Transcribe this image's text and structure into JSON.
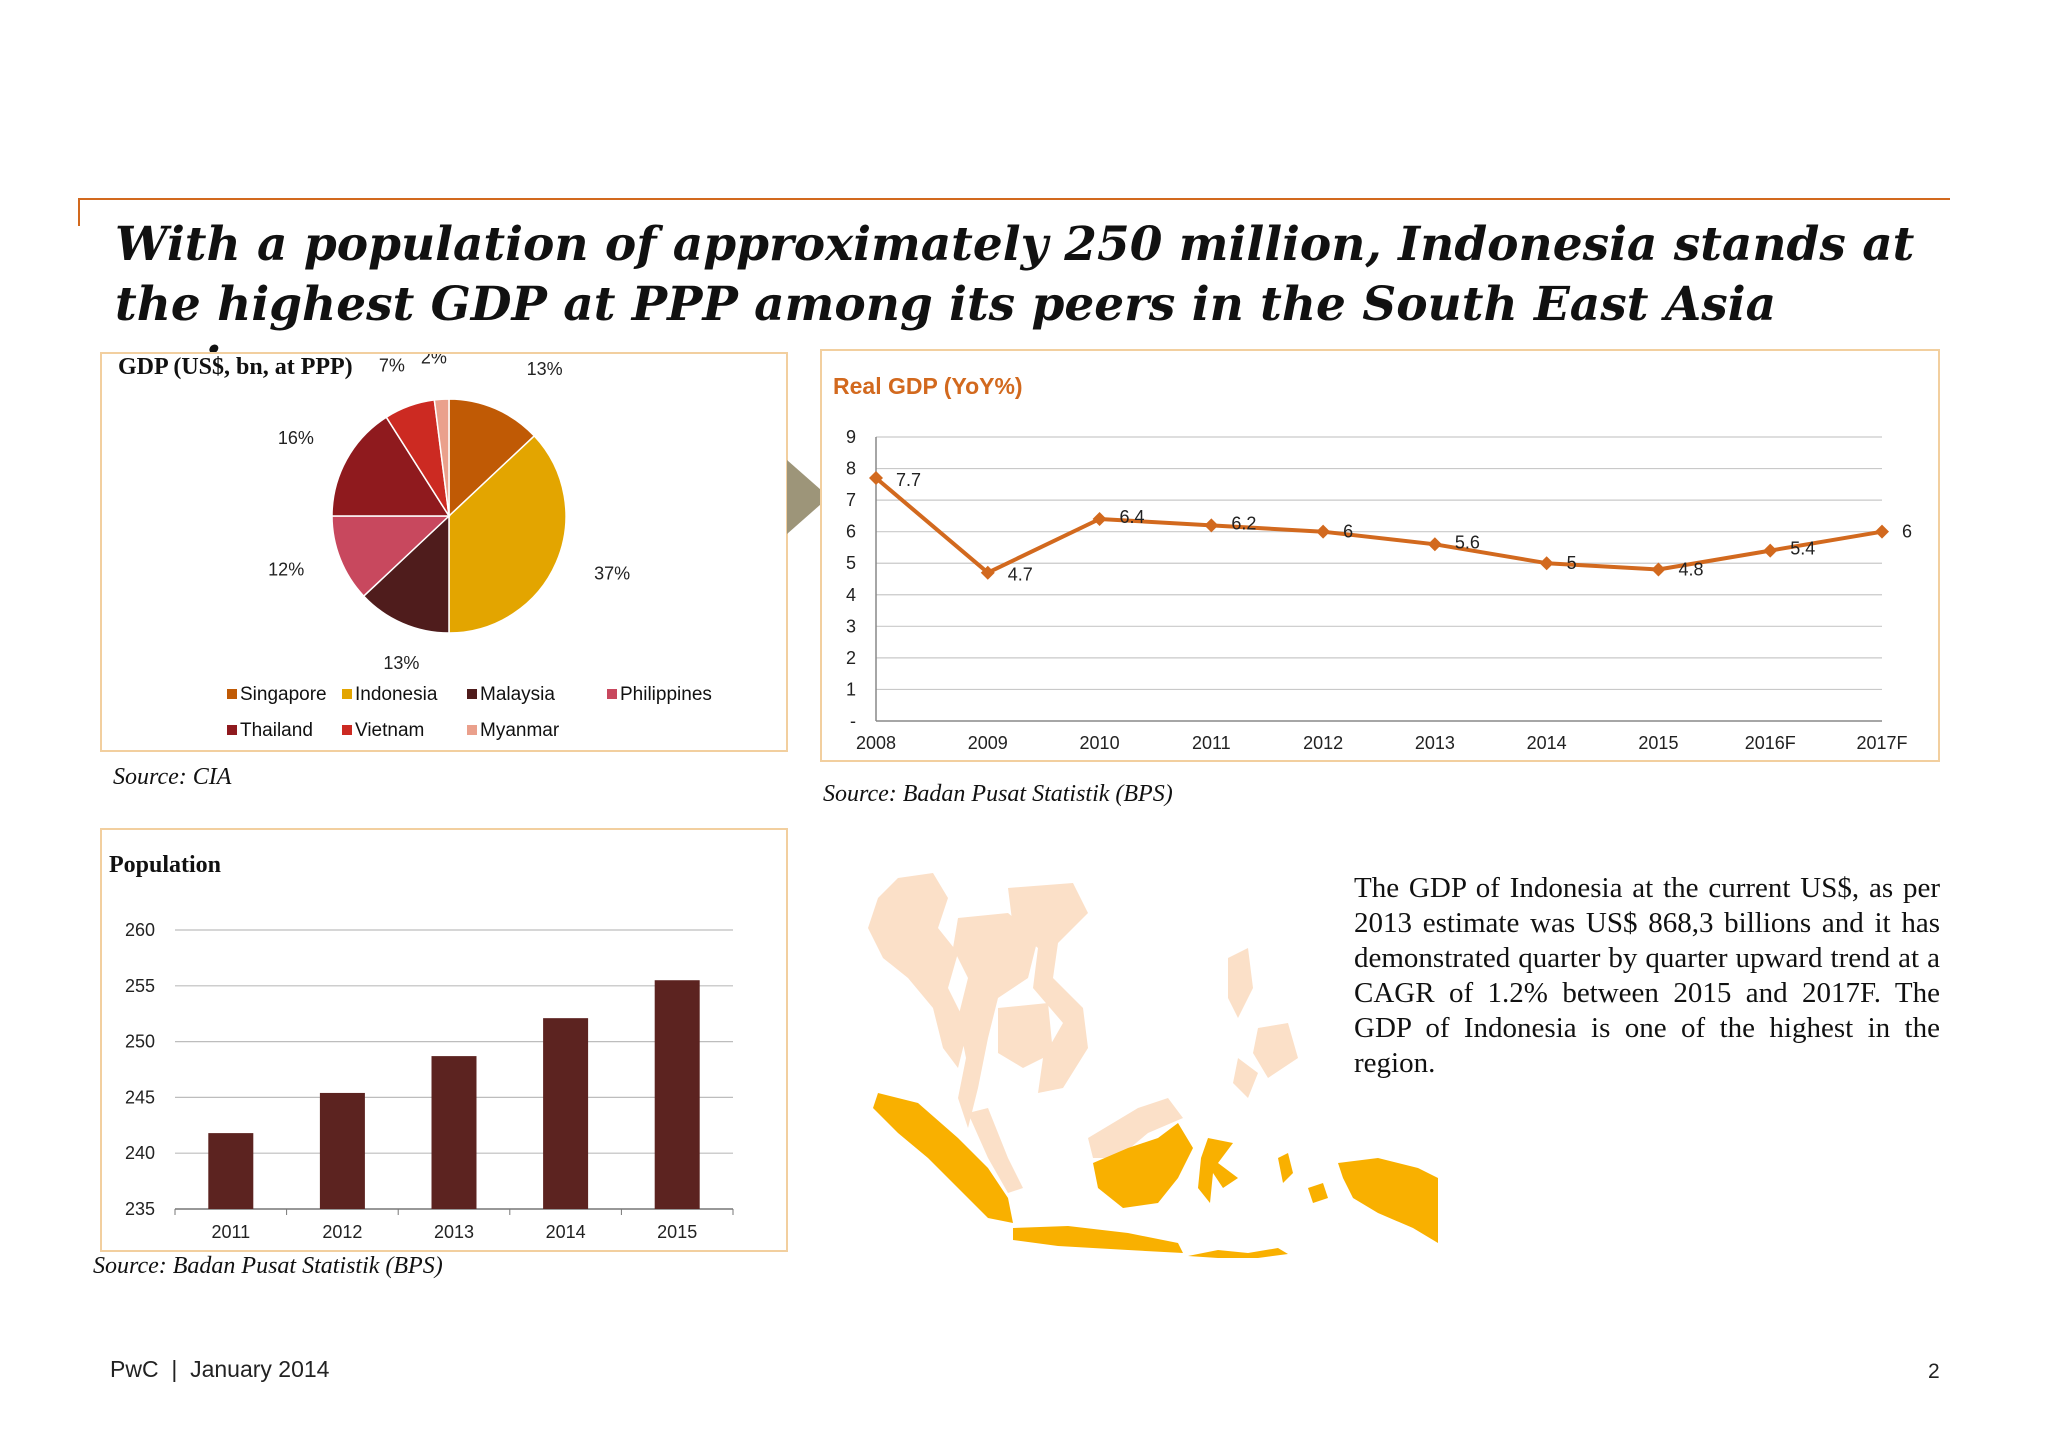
{
  "headline": "With a population of approximately 250 million, Indonesia stands at the highest GDP at PPP among its peers in the South East Asia region",
  "pie_panel": {
    "title": "GDP (US$, bn, at PPP)",
    "source": "Source: CIA"
  },
  "line_panel": {
    "title": "Real GDP (YoY%)",
    "source": "Source: Badan Pusat Statistik (BPS)"
  },
  "bar_panel": {
    "title": "Population",
    "source": "Source: Badan Pusat Statistik (BPS)"
  },
  "body_text": "The GDP of Indonesia at the current US$, as per 2013 estimate was US$ 868,3 billions and it has demonstrated quarter by quarter upward trend at a CAGR of 1.2% between 2015 and 2017F. The GDP of Indonesia is one of the highest in the region.",
  "footer": {
    "left": "PwC  |  January 2014",
    "page": "2"
  },
  "colors": {
    "accent": "#d2691e",
    "panel_border": "#f2cf9f",
    "bar": "#5c2320",
    "line": "#d2691e",
    "map_land": "#fbe0c8",
    "map_indonesia": "#f9b000",
    "arrow": "#9d9579"
  },
  "chart_data": [
    {
      "type": "pie",
      "title": "GDP (US$, bn, at PPP)",
      "slices": [
        {
          "label": "Singapore",
          "value": 13,
          "display": "13%",
          "color": "#c05a05"
        },
        {
          "label": "Indonesia",
          "value": 37,
          "display": "37%",
          "color": "#e3a500"
        },
        {
          "label": "Malaysia",
          "value": 13,
          "display": "13%",
          "color": "#4f1c1c"
        },
        {
          "label": "Philippines",
          "value": 12,
          "display": "12%",
          "color": "#c8485e"
        },
        {
          "label": "Thailand",
          "value": 16,
          "display": "16%",
          "color": "#8f1a1e"
        },
        {
          "label": "Vietnam",
          "value": 7,
          "display": "7%",
          "color": "#cc2a22"
        },
        {
          "label": "Myanmar",
          "value": 2,
          "display": "2%",
          "color": "#eaa08c"
        }
      ],
      "legend": "bottom"
    },
    {
      "type": "line",
      "title": "Real GDP (YoY%)",
      "categories": [
        "2008",
        "2009",
        "2010",
        "2011",
        "2012",
        "2013",
        "2014",
        "2015",
        "2016F",
        "2017F"
      ],
      "values": [
        7.7,
        4.7,
        6.4,
        6.2,
        6,
        5.6,
        5,
        4.8,
        5.4,
        6
      ],
      "value_labels": [
        "7.7",
        "4.7",
        "6.4",
        "6.2",
        "6",
        "5.6",
        "5",
        "4.8",
        "5.4",
        "6"
      ],
      "ylim": [
        0,
        9
      ],
      "yticks": [
        "-",
        "1",
        "2",
        "3",
        "4",
        "5",
        "6",
        "7",
        "8",
        "9"
      ],
      "grid": true
    },
    {
      "type": "bar",
      "title": "Population",
      "categories": [
        "2011",
        "2012",
        "2013",
        "2014",
        "2015"
      ],
      "values": [
        241.8,
        245.4,
        248.7,
        252.1,
        255.5
      ],
      "ylim": [
        235,
        260
      ],
      "yticks": [
        "235",
        "240",
        "245",
        "250",
        "255",
        "260"
      ],
      "grid": true
    }
  ]
}
